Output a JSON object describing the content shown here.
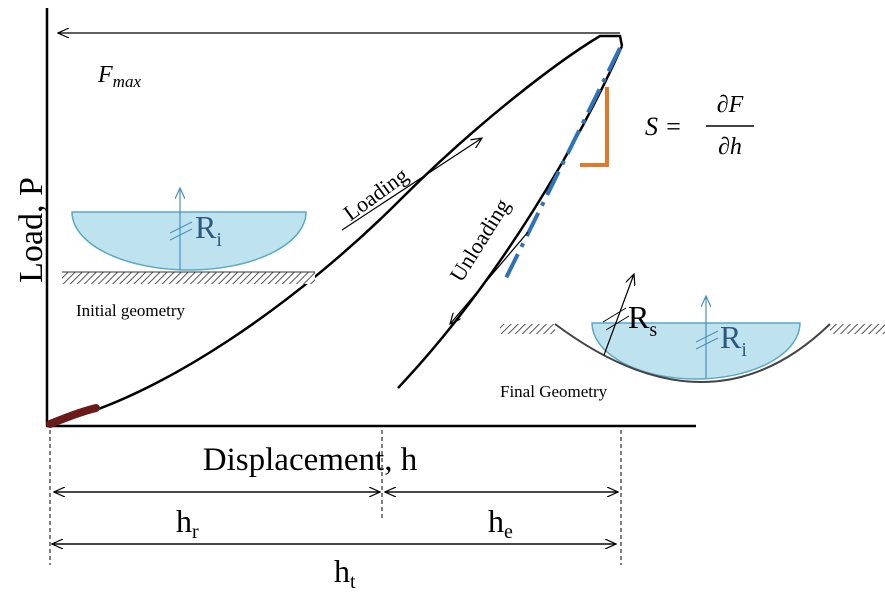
{
  "f_max": {
    "main": "F",
    "sub": "max"
  },
  "loading": "Loading",
  "unloading": "Unloading",
  "stiffness": {
    "lhs": "S =",
    "numerator": "∂F",
    "denominator": "∂h"
  },
  "y_axis_label": "Load, P",
  "x_axis_label": "Displacement, h",
  "initial_geometry": {
    "label": "Initial geometry",
    "radius": {
      "main": "R",
      "sub": "i"
    }
  },
  "final_geometry": {
    "label": "Final Geometry",
    "radius_s": {
      "main": "R",
      "sub": "s"
    },
    "radius_i": {
      "main": "R",
      "sub": "i"
    }
  },
  "h_r": {
    "main": "h",
    "sub": "r"
  },
  "h_e": {
    "main": "h",
    "sub": "e"
  },
  "h_t": {
    "main": "h",
    "sub": "t"
  }
}
